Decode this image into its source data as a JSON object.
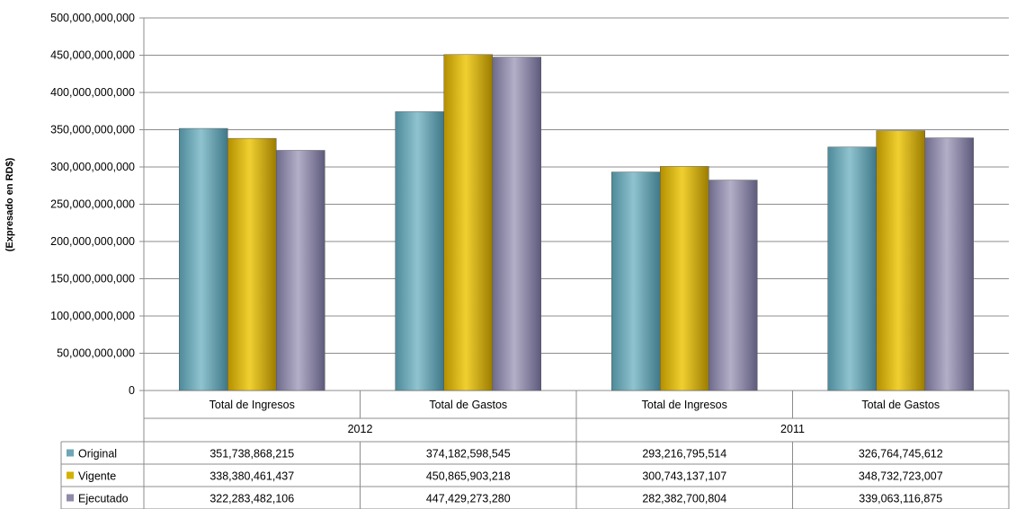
{
  "chart_data": {
    "type": "bar",
    "ylabel": "(Expresado en RD$)",
    "ylim": [
      0,
      500000000000
    ],
    "y_ticks": [
      "0",
      "50,000,000,000",
      "100,000,000,000",
      "150,000,000,000",
      "200,000,000,000",
      "250,000,000,000",
      "300,000,000,000",
      "350,000,000,000",
      "400,000,000,000",
      "450,000,000,000",
      "500,000,000,000"
    ],
    "groups": [
      {
        "label": "2012",
        "categories": [
          "Total de Ingresos",
          "Total de Gastos"
        ]
      },
      {
        "label": "2011",
        "categories": [
          "Total de Ingresos",
          "Total de Gastos"
        ]
      }
    ],
    "categories": [
      "Total de Ingresos",
      "Total de Gastos",
      "Total de Ingresos",
      "Total de Gastos"
    ],
    "series": [
      {
        "name": "Original",
        "color": "#6fa6b4",
        "values": [
          351738868215,
          374182598545,
          293216795514,
          326764745612
        ],
        "labels": [
          "351,738,868,215",
          "374,182,598,545",
          "293,216,795,514",
          "326,764,745,612"
        ]
      },
      {
        "name": "Vigente",
        "color": "#d4b000",
        "values": [
          338380461437,
          450865903218,
          300743137107,
          348732723007
        ],
        "labels": [
          "338,380,461,437",
          "450,865,903,218",
          "300,743,137,107",
          "348,732,723,007"
        ]
      },
      {
        "name": "Ejecutado",
        "color": "#8e8aa8",
        "values": [
          322283482106,
          447429273280,
          282382700804,
          339063116875
        ],
        "labels": [
          "322,283,482,106",
          "447,429,273,280",
          "282,382,700,804",
          "339,063,116,875"
        ]
      }
    ],
    "grid": true,
    "legend": "data-table"
  }
}
